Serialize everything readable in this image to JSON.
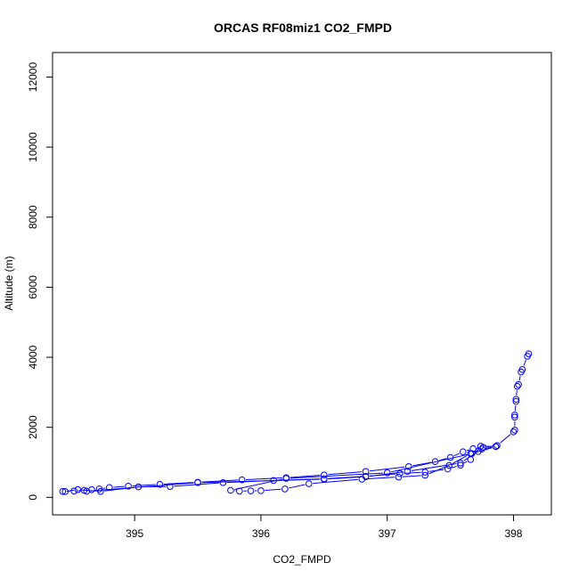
{
  "chart_data": {
    "type": "scatter",
    "title": "ORCAS RF08miz1 CO2_FMPD",
    "xlabel": "CO2_FMPD",
    "ylabel": "Altitude (m)",
    "xlim": [
      394.35,
      398.3
    ],
    "ylim": [
      -500,
      12700
    ],
    "x_ticks": [
      395,
      396,
      397,
      398
    ],
    "y_ticks": [
      0,
      2000,
      4000,
      6000,
      8000,
      10000,
      12000
    ],
    "grid": false,
    "legend": "none",
    "colors": {
      "series": "#0000ff",
      "axis": "#000000"
    },
    "series": [
      {
        "style": "points-and-lines",
        "x": [
          398.12,
          398.11,
          398.07,
          398.06,
          398.04,
          398.03,
          398.02,
          398.02,
          398.01,
          398.01,
          398.01,
          398.0,
          397.87,
          397.76,
          397.68,
          397.6,
          397.5,
          397.38,
          397.17,
          396.83,
          396.5,
          396.2,
          395.85,
          395.5,
          395.2,
          394.95,
          394.8,
          394.72,
          394.66,
          394.6,
          394.52,
          394.43,
          394.45,
          394.55,
          394.73,
          395.03,
          395.28,
          395.7,
          396.1,
          396.5,
          396.83,
          397.1,
          397.3,
          397.48,
          397.58,
          397.66,
          397.74,
          397.86,
          397.75,
          397.66,
          397.49,
          397.3,
          397.09,
          396.8,
          396.38,
          396.19,
          396.0,
          395.92,
          395.83,
          395.76,
          396.2,
          397.0,
          397.67,
          397.86,
          397.72,
          397.58,
          397.16,
          396.83,
          396.5,
          395.5,
          394.62
        ],
        "y": [
          4100,
          4030,
          3650,
          3580,
          3220,
          3170,
          2800,
          2740,
          2350,
          2290,
          1920,
          1870,
          1480,
          1430,
          1390,
          1300,
          1140,
          1020,
          880,
          740,
          640,
          560,
          500,
          430,
          370,
          320,
          280,
          240,
          220,
          200,
          180,
          170,
          165,
          220,
          170,
          300,
          310,
          420,
          480,
          530,
          600,
          680,
          720,
          810,
          920,
          1080,
          1460,
          1450,
          1380,
          1250,
          910,
          630,
          580,
          520,
          390,
          240,
          190,
          185,
          180,
          200,
          540,
          700,
          1250,
          1450,
          1310,
          980,
          740,
          590,
          520,
          420,
          175
        ]
      }
    ]
  }
}
